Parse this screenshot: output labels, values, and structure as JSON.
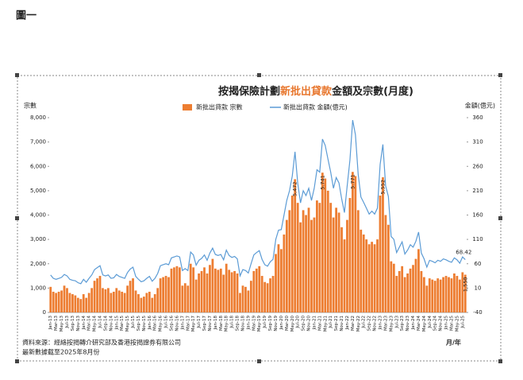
{
  "heading": "圖一",
  "chart_data": {
    "type": "bar",
    "title": [
      "按揭保險計劃",
      "新批出貸款",
      "金額及宗數(月度)"
    ],
    "title_highlight_color": "#e8772e",
    "y_axis_title": "宗數",
    "y2_axis_title": "金額(億元)",
    "x_axis_title": "月/年",
    "source": "資料來源：經絡按揭轉介研究部及香港按揭證券有限公司",
    "note": "最新數據截至2025年8月份",
    "categories": [
      "Jan-13",
      null,
      "Mar-13",
      null,
      "May-13",
      null,
      "Jul-13",
      null,
      "Sep-13",
      null,
      "Nov-13",
      null,
      "Jan-14",
      null,
      "Mar-14",
      null,
      "May-14",
      null,
      "Jul-14",
      null,
      "Sep-14",
      null,
      "Nov-14",
      null,
      "Jan-15",
      null,
      "Mar-15",
      null,
      "May-15",
      null,
      "Jul-15",
      null,
      "Sep-15",
      null,
      "Nov-15",
      null,
      "Jan-16",
      null,
      "Mar-16",
      null,
      "May-16",
      null,
      "Jul-16",
      null,
      "Sep-16",
      null,
      "Nov-16",
      null,
      "Jan-17",
      null,
      "Mar-17",
      null,
      "May-17",
      null,
      "Jul-17",
      null,
      "Sep-17",
      null,
      "Nov-17",
      null,
      "Jan-18",
      null,
      "Mar-18",
      null,
      "May-18",
      null,
      "Jul-18",
      null,
      "Sep-18",
      null,
      "Nov-18",
      null,
      "Jan-19",
      null,
      "Mar-19",
      null,
      "May-19",
      null,
      "Jul-19",
      null,
      "Sep-19",
      null,
      "Nov-19",
      null,
      "Jan-20",
      null,
      "Mar-20",
      null,
      "May-20",
      null,
      "Jul-20",
      null,
      "Sep-20",
      null,
      "Nov-20",
      null,
      "Jan-21",
      null,
      "Mar-21",
      null,
      "May-21",
      null,
      "Jul-21",
      null,
      "Sep-21",
      null,
      "Nov-21",
      null,
      "Jan-22",
      null,
      "Mar-22",
      null,
      "May-22",
      null,
      "Jul-22",
      null,
      "Sep-22",
      null,
      "Nov-22",
      null,
      "Jan-23",
      null,
      "Mar-23",
      null,
      "May-23",
      null,
      "Jul-23",
      null,
      "Sep-23",
      null,
      "Nov-23",
      null,
      "Jan-24",
      null,
      "Mar-24",
      null,
      "May-24",
      null,
      "Jul-24",
      null,
      "Sep-24",
      null,
      "Nov-24",
      null,
      "Jan-25",
      null,
      "Mar-25",
      null,
      "May-25",
      null,
      "Jul-25",
      null
    ],
    "series": [
      {
        "name": "新批出貸款 宗數",
        "type": "bar",
        "color": "#ed7d31",
        "values": [
          1050,
          850,
          800,
          850,
          900,
          1100,
          1000,
          800,
          750,
          700,
          600,
          550,
          750,
          600,
          800,
          1000,
          1300,
          1400,
          1500,
          1000,
          950,
          1000,
          800,
          850,
          1000,
          900,
          850,
          800,
          1100,
          1300,
          1400,
          900,
          750,
          600,
          650,
          800,
          850,
          600,
          750,
          1000,
          1400,
          1450,
          1500,
          1450,
          1800,
          1850,
          1900,
          1850,
          1100,
          1200,
          1100,
          2000,
          1850,
          1350,
          1600,
          1700,
          1850,
          1600,
          1950,
          2200,
          1800,
          1750,
          1800,
          1550,
          2000,
          1750,
          1650,
          1700,
          1600,
          800,
          1100,
          1050,
          900,
          1300,
          1700,
          1800,
          1900,
          1500,
          1250,
          1200,
          1400,
          1500,
          2400,
          2800,
          2600,
          3200,
          3800,
          4200,
          4800,
          5472,
          4500,
          3700,
          4200,
          4000,
          4300,
          3800,
          3900,
          4600,
          4500,
          5741,
          5500,
          5000,
          4500,
          3900,
          4300,
          4100,
          3500,
          3000,
          3800,
          4700,
          5771,
          5600,
          4200,
          3400,
          3200,
          3000,
          2800,
          2900,
          2800,
          3000,
          4800,
          5552,
          4000,
          3600,
          2100,
          2000,
          1500,
          1700,
          1900,
          1450,
          1600,
          1800,
          1950,
          2200,
          2600,
          1700,
          1450,
          1100,
          1400,
          1350,
          1300,
          1400,
          1350,
          1450,
          1500,
          1450,
          1400,
          1600,
          1500,
          1350,
          1650,
          1550
        ],
        "value_labels": [
          null,
          null,
          null,
          null,
          null,
          null,
          null,
          null,
          null,
          null,
          null,
          null,
          null,
          null,
          null,
          null,
          null,
          null,
          null,
          null,
          null,
          null,
          null,
          null,
          null,
          null,
          null,
          null,
          null,
          null,
          null,
          null,
          null,
          null,
          null,
          null,
          null,
          null,
          null,
          null,
          null,
          null,
          null,
          null,
          null,
          null,
          null,
          null,
          null,
          null,
          null,
          null,
          null,
          null,
          null,
          null,
          null,
          null,
          null,
          null,
          null,
          null,
          null,
          null,
          null,
          null,
          null,
          null,
          null,
          null,
          null,
          null,
          null,
          null,
          null,
          null,
          null,
          null,
          null,
          null,
          null,
          null,
          null,
          null,
          null,
          null,
          null,
          null,
          null,
          "5,472",
          null,
          null,
          null,
          null,
          null,
          null,
          null,
          null,
          null,
          "5,741",
          null,
          null,
          null,
          null,
          null,
          null,
          null,
          null,
          null,
          null,
          "5,771",
          null,
          null,
          null,
          null,
          null,
          null,
          null,
          null,
          null,
          null,
          "5,552",
          null,
          null,
          null,
          null,
          null,
          null,
          null,
          null,
          null,
          null,
          null,
          null,
          null,
          null,
          null,
          null,
          null,
          null,
          null,
          null,
          null,
          null,
          null,
          null,
          null,
          null,
          null,
          null,
          null,
          "1,550"
        ]
      },
      {
        "name": "新批出貸款 金額(億元)",
        "type": "line",
        "axis": "y2",
        "color": "#5b9bd5",
        "values": [
          37,
          30,
          28,
          30,
          32,
          38,
          35,
          28,
          26,
          25,
          21,
          19,
          28,
          22,
          30,
          37,
          48,
          52,
          56,
          37,
          35,
          37,
          30,
          31,
          38,
          34,
          32,
          30,
          42,
          49,
          53,
          34,
          28,
          23,
          25,
          30,
          34,
          24,
          30,
          40,
          56,
          58,
          60,
          58,
          72,
          74,
          76,
          74,
          46,
          50,
          46,
          84,
          78,
          57,
          67,
          71,
          78,
          67,
          82,
          92,
          79,
          77,
          79,
          68,
          88,
          77,
          73,
          75,
          70,
          35,
          48,
          46,
          41,
          60,
          78,
          83,
          87,
          69,
          58,
          55,
          64,
          69,
          110,
          129,
          130,
          160,
          190,
          210,
          240,
          290,
          225,
          185,
          210,
          200,
          215,
          190,
          215,
          253,
          248,
          316,
          303,
          275,
          248,
          215,
          237,
          226,
          193,
          165,
          220,
          273,
          355,
          325,
          244,
          197,
          186,
          174,
          162,
          168,
          162,
          174,
          264,
          305,
          220,
          198,
          116,
          110,
          83,
          94,
          105,
          80,
          88,
          99,
          94,
          106,
          125,
          82,
          70,
          53,
          67,
          65,
          62,
          67,
          65,
          70,
          68,
          65,
          63,
          72,
          68,
          61,
          74,
          68.42
        ],
        "value_labels": [
          null,
          null,
          null,
          null,
          null,
          null,
          null,
          null,
          null,
          null,
          null,
          null,
          null,
          null,
          null,
          null,
          null,
          null,
          null,
          null,
          null,
          null,
          null,
          null,
          null,
          null,
          null,
          null,
          null,
          null,
          null,
          null,
          null,
          null,
          null,
          null,
          null,
          null,
          null,
          null,
          null,
          null,
          null,
          null,
          null,
          null,
          null,
          null,
          null,
          null,
          null,
          null,
          null,
          null,
          null,
          null,
          null,
          null,
          null,
          null,
          null,
          null,
          null,
          null,
          null,
          null,
          null,
          null,
          null,
          null,
          null,
          null,
          null,
          null,
          null,
          null,
          null,
          null,
          null,
          null,
          null,
          null,
          null,
          null,
          null,
          null,
          null,
          null,
          null,
          null,
          null,
          null,
          null,
          null,
          null,
          null,
          null,
          null,
          null,
          null,
          null,
          null,
          null,
          null,
          null,
          null,
          null,
          null,
          null,
          null,
          null,
          null,
          null,
          null,
          null,
          null,
          null,
          null,
          null,
          null,
          null,
          null,
          null,
          null,
          null,
          null,
          null,
          null,
          null,
          null,
          null,
          null,
          null,
          null,
          null,
          null,
          null,
          null,
          null,
          null,
          null,
          null,
          null,
          null,
          null,
          null,
          null,
          null,
          null,
          null,
          null,
          "68.42"
        ]
      }
    ],
    "ylim": [
      0,
      8000
    ],
    "yticks": [
      0,
      {
        "value": 1000,
        "label": "1,000"
      },
      {
        "value": 2000,
        "label": "2,000"
      },
      {
        "value": 3000,
        "label": "3,000"
      },
      {
        "value": 4000,
        "label": "4,000"
      },
      {
        "value": 5000,
        "label": "5,000"
      },
      {
        "value": 6000,
        "label": "6,000"
      },
      {
        "value": 7000,
        "label": "7,000"
      },
      {
        "value": 8000,
        "label": "8,000"
      }
    ],
    "y2lim": [
      -40,
      360
    ],
    "y2ticks": [
      -40,
      10,
      60,
      110,
      160,
      210,
      260,
      310,
      360
    ],
    "legend": "top"
  }
}
